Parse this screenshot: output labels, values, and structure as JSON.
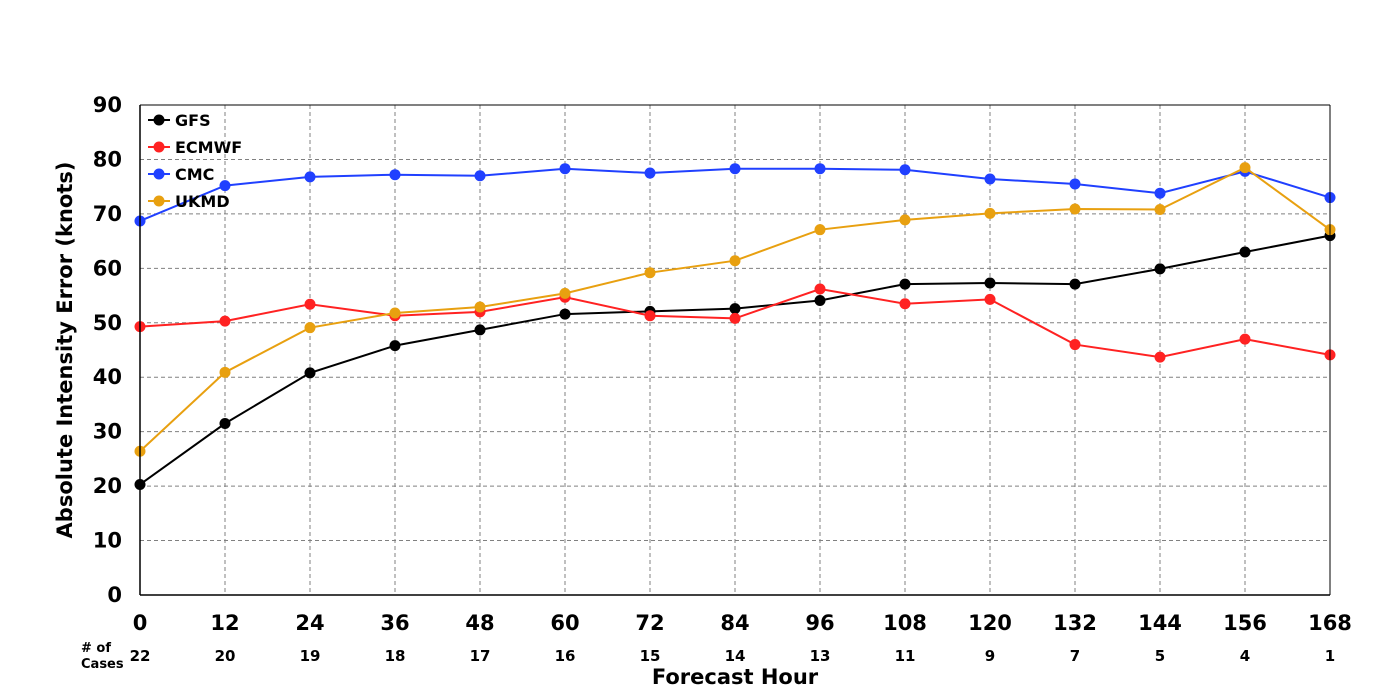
{
  "chart_data": {
    "type": "line",
    "title": "",
    "xlabel": "Forecast Hour",
    "ylabel": "Absolute Intensity Error (knots)",
    "xlim": [
      0,
      168
    ],
    "ylim": [
      0,
      90
    ],
    "yticks": [
      0,
      10,
      20,
      30,
      40,
      50,
      60,
      70,
      80,
      90
    ],
    "x": [
      0,
      12,
      24,
      36,
      48,
      60,
      72,
      84,
      96,
      108,
      120,
      132,
      144,
      156,
      168
    ],
    "cases_label": "# of\nCases",
    "cases": [
      22,
      20,
      19,
      18,
      17,
      16,
      15,
      14,
      13,
      11,
      9,
      7,
      5,
      4,
      1
    ],
    "grid": true,
    "legend_position": "top-left",
    "series": [
      {
        "name": "GFS",
        "color": "#000000",
        "values": [
          20.3,
          31.5,
          40.8,
          45.8,
          48.7,
          51.6,
          52.1,
          52.6,
          54.1,
          57.1,
          57.3,
          57.1,
          59.9,
          63.0,
          66.0
        ]
      },
      {
        "name": "ECMWF",
        "color": "#ff2222",
        "values": [
          49.3,
          50.3,
          53.4,
          51.3,
          52.0,
          54.7,
          51.3,
          50.8,
          56.2,
          53.5,
          54.3,
          46.0,
          43.7,
          47.0,
          44.1
        ]
      },
      {
        "name": "CMC",
        "color": "#2040ff",
        "values": [
          68.7,
          75.2,
          76.8,
          77.2,
          77.0,
          78.3,
          77.5,
          78.3,
          78.3,
          78.1,
          76.4,
          75.5,
          73.8,
          77.8,
          73.0
        ]
      },
      {
        "name": "UKMD",
        "color": "#e8a010",
        "values": [
          26.4,
          40.9,
          49.1,
          51.8,
          52.9,
          55.4,
          59.2,
          61.4,
          67.1,
          68.9,
          70.1,
          70.9,
          70.8,
          78.5,
          67.1
        ]
      }
    ]
  }
}
